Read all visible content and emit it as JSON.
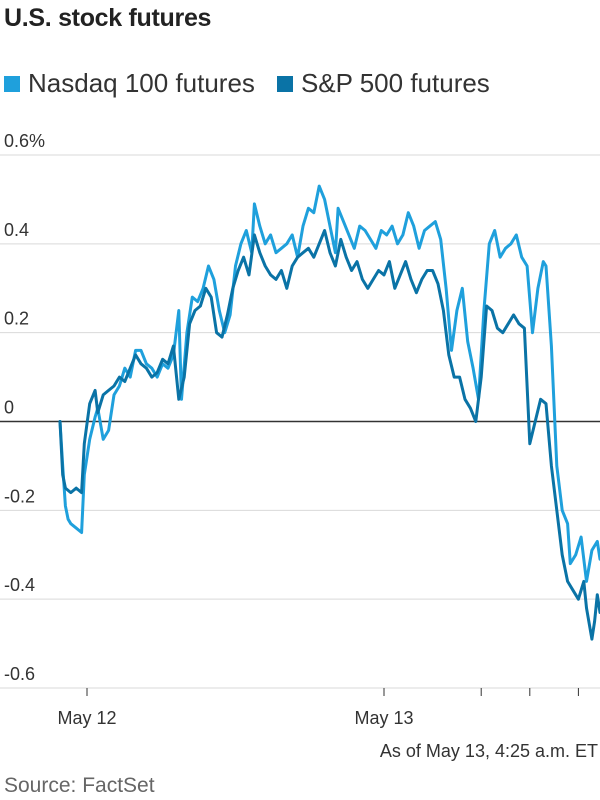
{
  "title": "U.S. stock futures",
  "source": "Source: FactSet",
  "note": "As of May 13, 4:25 a.m. ET",
  "colors": {
    "nasdaq": "#1FA0DC",
    "sp500": "#0A73A6",
    "grid": "#d9d9d9",
    "zero": "#333333"
  },
  "chart_data": {
    "type": "line",
    "title": "U.S. stock futures",
    "ylim": [
      -0.6,
      0.6
    ],
    "y_ticks": [
      {
        "value": 0.6,
        "label": "0.6%"
      },
      {
        "value": 0.4,
        "label": "0.4"
      },
      {
        "value": 0.2,
        "label": "0.2"
      },
      {
        "value": 0,
        "label": "0"
      },
      {
        "value": -0.2,
        "label": "-0.2"
      },
      {
        "value": -0.4,
        "label": "-0.4"
      },
      {
        "value": -0.6,
        "label": "-0.6"
      }
    ],
    "x_labels": [
      {
        "label": "May 12",
        "x": 0.05
      },
      {
        "label": "May 13",
        "x": 0.6
      }
    ],
    "x_ticks": [
      0.05,
      0.6,
      0.78,
      0.87,
      0.96
    ],
    "grid": true,
    "legend": "top-left",
    "series": [
      {
        "name": "Nasdaq 100 futures",
        "color": "#1FA0DC",
        "points": [
          [
            0.0,
            0.0
          ],
          [
            0.005,
            -0.1
          ],
          [
            0.01,
            -0.19
          ],
          [
            0.015,
            -0.22
          ],
          [
            0.02,
            -0.23
          ],
          [
            0.03,
            -0.24
          ],
          [
            0.04,
            -0.25
          ],
          [
            0.045,
            -0.12
          ],
          [
            0.055,
            -0.04
          ],
          [
            0.065,
            0.01
          ],
          [
            0.07,
            0.03
          ],
          [
            0.08,
            -0.04
          ],
          [
            0.09,
            -0.02
          ],
          [
            0.1,
            0.06
          ],
          [
            0.11,
            0.08
          ],
          [
            0.12,
            0.12
          ],
          [
            0.13,
            0.1
          ],
          [
            0.14,
            0.16
          ],
          [
            0.15,
            0.16
          ],
          [
            0.16,
            0.13
          ],
          [
            0.17,
            0.12
          ],
          [
            0.18,
            0.1
          ],
          [
            0.19,
            0.13
          ],
          [
            0.2,
            0.12
          ],
          [
            0.21,
            0.15
          ],
          [
            0.22,
            0.25
          ],
          [
            0.225,
            0.05
          ],
          [
            0.235,
            0.2
          ],
          [
            0.245,
            0.28
          ],
          [
            0.255,
            0.27
          ],
          [
            0.265,
            0.3
          ],
          [
            0.275,
            0.35
          ],
          [
            0.285,
            0.32
          ],
          [
            0.295,
            0.25
          ],
          [
            0.305,
            0.2
          ],
          [
            0.315,
            0.24
          ],
          [
            0.325,
            0.35
          ],
          [
            0.335,
            0.4
          ],
          [
            0.345,
            0.43
          ],
          [
            0.355,
            0.38
          ],
          [
            0.36,
            0.49
          ],
          [
            0.37,
            0.44
          ],
          [
            0.38,
            0.4
          ],
          [
            0.39,
            0.42
          ],
          [
            0.4,
            0.38
          ],
          [
            0.41,
            0.39
          ],
          [
            0.42,
            0.4
          ],
          [
            0.43,
            0.42
          ],
          [
            0.44,
            0.37
          ],
          [
            0.45,
            0.44
          ],
          [
            0.46,
            0.48
          ],
          [
            0.47,
            0.47
          ],
          [
            0.48,
            0.53
          ],
          [
            0.49,
            0.5
          ],
          [
            0.5,
            0.44
          ],
          [
            0.51,
            0.38
          ],
          [
            0.515,
            0.48
          ],
          [
            0.525,
            0.45
          ],
          [
            0.535,
            0.42
          ],
          [
            0.545,
            0.39
          ],
          [
            0.555,
            0.44
          ],
          [
            0.565,
            0.43
          ],
          [
            0.575,
            0.41
          ],
          [
            0.585,
            0.39
          ],
          [
            0.595,
            0.43
          ],
          [
            0.605,
            0.42
          ],
          [
            0.615,
            0.44
          ],
          [
            0.625,
            0.4
          ],
          [
            0.635,
            0.42
          ],
          [
            0.645,
            0.47
          ],
          [
            0.655,
            0.44
          ],
          [
            0.665,
            0.39
          ],
          [
            0.675,
            0.43
          ],
          [
            0.685,
            0.44
          ],
          [
            0.695,
            0.45
          ],
          [
            0.705,
            0.41
          ],
          [
            0.715,
            0.3
          ],
          [
            0.725,
            0.16
          ],
          [
            0.735,
            0.25
          ],
          [
            0.745,
            0.3
          ],
          [
            0.755,
            0.18
          ],
          [
            0.765,
            0.12
          ],
          [
            0.775,
            0.05
          ],
          [
            0.785,
            0.25
          ],
          [
            0.795,
            0.4
          ],
          [
            0.805,
            0.43
          ],
          [
            0.815,
            0.37
          ],
          [
            0.825,
            0.39
          ],
          [
            0.835,
            0.4
          ],
          [
            0.845,
            0.42
          ],
          [
            0.855,
            0.37
          ],
          [
            0.865,
            0.35
          ],
          [
            0.875,
            0.2
          ],
          [
            0.885,
            0.3
          ],
          [
            0.895,
            0.36
          ],
          [
            0.9,
            0.35
          ],
          [
            0.91,
            0.17
          ],
          [
            0.92,
            -0.1
          ],
          [
            0.93,
            -0.2
          ],
          [
            0.94,
            -0.23
          ],
          [
            0.945,
            -0.32
          ],
          [
            0.955,
            -0.3
          ],
          [
            0.965,
            -0.26
          ],
          [
            0.975,
            -0.36
          ],
          [
            0.985,
            -0.29
          ],
          [
            0.995,
            -0.27
          ],
          [
            1.0,
            -0.31
          ]
        ]
      },
      {
        "name": "S&P 500 futures",
        "color": "#0A73A6",
        "points": [
          [
            0.0,
            0.0
          ],
          [
            0.005,
            -0.12
          ],
          [
            0.01,
            -0.15
          ],
          [
            0.02,
            -0.16
          ],
          [
            0.03,
            -0.15
          ],
          [
            0.04,
            -0.16
          ],
          [
            0.045,
            -0.05
          ],
          [
            0.055,
            0.04
          ],
          [
            0.065,
            0.07
          ],
          [
            0.07,
            0.02
          ],
          [
            0.08,
            0.06
          ],
          [
            0.09,
            0.07
          ],
          [
            0.1,
            0.08
          ],
          [
            0.11,
            0.1
          ],
          [
            0.12,
            0.09
          ],
          [
            0.13,
            0.12
          ],
          [
            0.14,
            0.15
          ],
          [
            0.15,
            0.13
          ],
          [
            0.16,
            0.12
          ],
          [
            0.17,
            0.1
          ],
          [
            0.18,
            0.11
          ],
          [
            0.19,
            0.14
          ],
          [
            0.2,
            0.13
          ],
          [
            0.21,
            0.17
          ],
          [
            0.22,
            0.05
          ],
          [
            0.23,
            0.1
          ],
          [
            0.24,
            0.22
          ],
          [
            0.25,
            0.25
          ],
          [
            0.26,
            0.26
          ],
          [
            0.27,
            0.3
          ],
          [
            0.28,
            0.28
          ],
          [
            0.29,
            0.2
          ],
          [
            0.3,
            0.19
          ],
          [
            0.31,
            0.24
          ],
          [
            0.32,
            0.3
          ],
          [
            0.33,
            0.34
          ],
          [
            0.34,
            0.37
          ],
          [
            0.35,
            0.33
          ],
          [
            0.36,
            0.42
          ],
          [
            0.37,
            0.38
          ],
          [
            0.38,
            0.35
          ],
          [
            0.39,
            0.33
          ],
          [
            0.4,
            0.32
          ],
          [
            0.41,
            0.34
          ],
          [
            0.42,
            0.3
          ],
          [
            0.43,
            0.35
          ],
          [
            0.44,
            0.37
          ],
          [
            0.45,
            0.38
          ],
          [
            0.46,
            0.39
          ],
          [
            0.47,
            0.37
          ],
          [
            0.48,
            0.4
          ],
          [
            0.49,
            0.43
          ],
          [
            0.5,
            0.38
          ],
          [
            0.51,
            0.35
          ],
          [
            0.52,
            0.41
          ],
          [
            0.53,
            0.37
          ],
          [
            0.54,
            0.34
          ],
          [
            0.55,
            0.36
          ],
          [
            0.56,
            0.32
          ],
          [
            0.57,
            0.3
          ],
          [
            0.58,
            0.32
          ],
          [
            0.59,
            0.34
          ],
          [
            0.6,
            0.33
          ],
          [
            0.61,
            0.36
          ],
          [
            0.62,
            0.3
          ],
          [
            0.63,
            0.33
          ],
          [
            0.64,
            0.36
          ],
          [
            0.65,
            0.32
          ],
          [
            0.66,
            0.29
          ],
          [
            0.67,
            0.32
          ],
          [
            0.68,
            0.34
          ],
          [
            0.69,
            0.34
          ],
          [
            0.7,
            0.31
          ],
          [
            0.71,
            0.25
          ],
          [
            0.72,
            0.15
          ],
          [
            0.73,
            0.1
          ],
          [
            0.74,
            0.1
          ],
          [
            0.75,
            0.05
          ],
          [
            0.76,
            0.03
          ],
          [
            0.77,
            0.0
          ],
          [
            0.78,
            0.1
          ],
          [
            0.79,
            0.26
          ],
          [
            0.8,
            0.25
          ],
          [
            0.81,
            0.21
          ],
          [
            0.82,
            0.2
          ],
          [
            0.83,
            0.22
          ],
          [
            0.84,
            0.24
          ],
          [
            0.85,
            0.22
          ],
          [
            0.86,
            0.21
          ],
          [
            0.87,
            -0.05
          ],
          [
            0.88,
            0.0
          ],
          [
            0.89,
            0.05
          ],
          [
            0.9,
            0.04
          ],
          [
            0.91,
            -0.1
          ],
          [
            0.92,
            -0.2
          ],
          [
            0.93,
            -0.3
          ],
          [
            0.94,
            -0.36
          ],
          [
            0.95,
            -0.38
          ],
          [
            0.96,
            -0.4
          ],
          [
            0.97,
            -0.36
          ],
          [
            0.975,
            -0.42
          ],
          [
            0.985,
            -0.49
          ],
          [
            0.99,
            -0.45
          ],
          [
            0.995,
            -0.39
          ],
          [
            1.0,
            -0.43
          ]
        ]
      }
    ]
  }
}
